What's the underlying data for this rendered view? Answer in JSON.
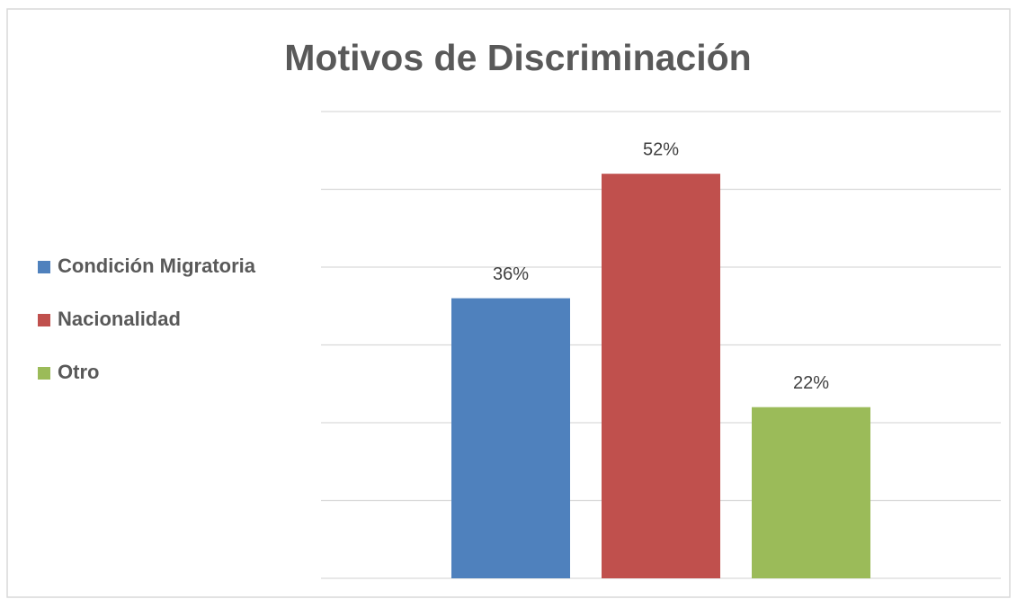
{
  "chart_data": {
    "type": "bar",
    "title": "Motivos de Discriminación",
    "series": [
      {
        "name": "Condición Migratoria",
        "color": "#4f81bd",
        "values": [
          36
        ],
        "value_labels": [
          "36%"
        ]
      },
      {
        "name": "Nacionalidad",
        "color": "#c0504d",
        "values": [
          52
        ],
        "value_labels": [
          "52%"
        ]
      },
      {
        "name": "Otro",
        "color": "#9bbb59",
        "values": [
          22
        ],
        "value_labels": [
          "22%"
        ]
      }
    ],
    "ylim": [
      0,
      60
    ],
    "yticks": [
      0,
      10,
      20,
      30,
      40,
      50,
      60
    ],
    "grid": true,
    "legend": "left"
  }
}
